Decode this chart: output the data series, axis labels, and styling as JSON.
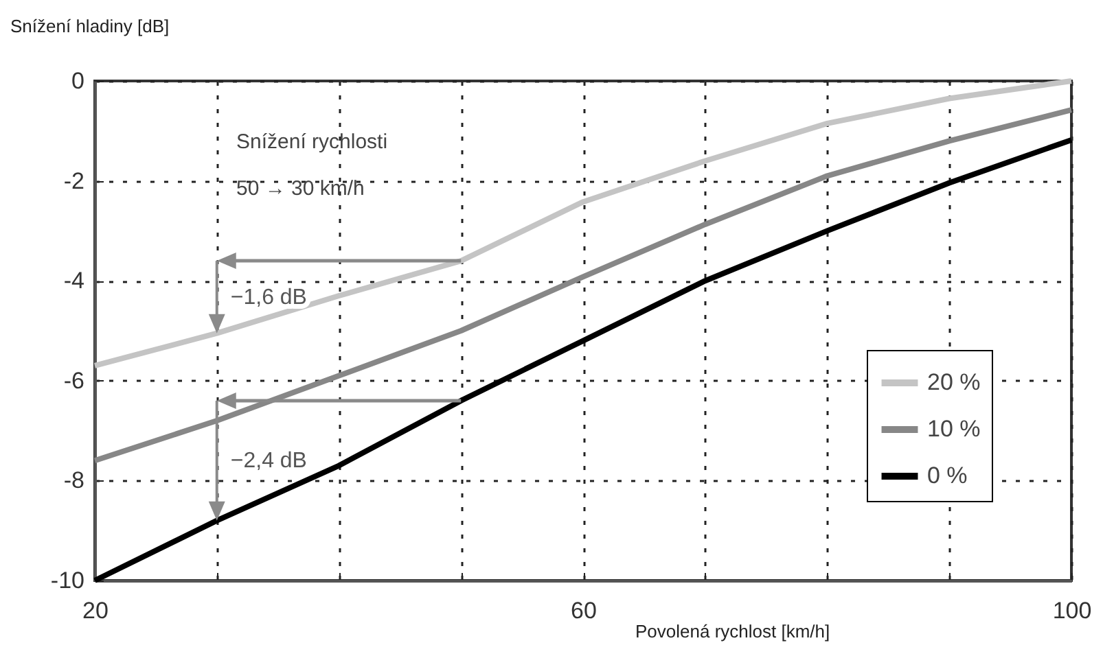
{
  "chart_data": {
    "type": "line",
    "xlabel": "Povolená rychlost [km/h]",
    "ylabel": "Snížení hladiny [dB]",
    "x": [
      20,
      30,
      40,
      50,
      60,
      70,
      80,
      90,
      100
    ],
    "series": [
      {
        "name": "20 %",
        "color": "#c4c4c4",
        "values": [
          -5.7,
          -5.05,
          -4.3,
          -3.6,
          -2.42,
          -1.6,
          -0.85,
          -0.35,
          0
        ]
      },
      {
        "name": "10 %",
        "color": "#878787",
        "values": [
          -7.6,
          -6.8,
          -5.9,
          -5.0,
          -3.92,
          -2.87,
          -1.9,
          -1.2,
          -0.58
        ]
      },
      {
        "name": "0 %",
        "color": "#000000",
        "values": [
          -10,
          -8.8,
          -7.7,
          -6.4,
          -5.2,
          -4.0,
          -3.0,
          -2.04,
          -1.18
        ]
      }
    ],
    "xlim": [
      20,
      100
    ],
    "xticks": [
      20,
      {
        "value": 30,
        "label": null
      },
      {
        "value": 40,
        "label": null
      },
      {
        "value": 50,
        "label": null
      },
      60,
      {
        "value": 70,
        "label": null
      },
      {
        "value": 80,
        "label": null
      },
      {
        "value": 90,
        "label": null
      },
      100
    ],
    "ylim": [
      -10,
      0
    ],
    "yticks": [
      -10,
      -8,
      -6,
      -4,
      -2,
      0
    ],
    "grid": true,
    "legend": "bottom right",
    "line_style": "solid",
    "marker": "none",
    "annotations": [
      "Snížení rychlosti",
      "50 → 30 km/h",
      {
        "text": "−1,6 dB",
        "x": 30,
        "y": -5.05
      },
      {
        "text": "−2,4 dB",
        "x": 30,
        "y": -8.8
      }
    ]
  }
}
